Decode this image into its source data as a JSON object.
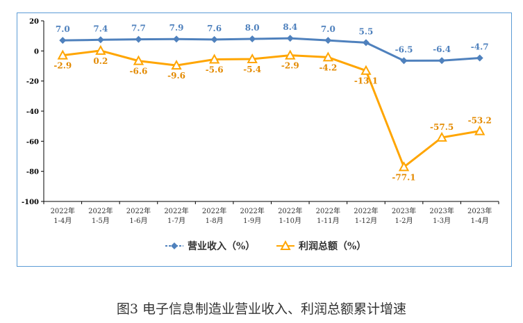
{
  "caption": "图3 电子信息制造业营业收入、利润总额累计增速",
  "chart_data": {
    "type": "line",
    "categories": [
      [
        "2022年",
        "1-4月"
      ],
      [
        "2022年",
        "1-5月"
      ],
      [
        "2022年",
        "1-6月"
      ],
      [
        "2022年",
        "1-7月"
      ],
      [
        "2022年",
        "1-8月"
      ],
      [
        "2022年",
        "1-9月"
      ],
      [
        "2022年",
        "1-10月"
      ],
      [
        "2022年",
        "1-11月"
      ],
      [
        "2022年",
        "1-12月"
      ],
      [
        "2023年",
        "1-2月"
      ],
      [
        "2023年",
        "1-3月"
      ],
      [
        "2023年",
        "1-4月"
      ]
    ],
    "ylim": [
      -100,
      20
    ],
    "yticks": [
      20,
      0,
      -20,
      -40,
      -60,
      -80,
      -100
    ],
    "grid": false,
    "legend_position": "bottom",
    "series": [
      {
        "name": "营业收入（%）",
        "color": "#4f81bd",
        "marker": "diamond",
        "values": [
          7.0,
          7.4,
          7.7,
          7.9,
          7.6,
          8.0,
          8.4,
          7.0,
          5.5,
          -6.5,
          -6.4,
          -4.7
        ],
        "labels": [
          "7.0",
          "7.4",
          "7.7",
          "7.9",
          "7.6",
          "8.0",
          "8.4",
          "7.0",
          "5.5",
          "-6.5",
          "-6.4",
          "-4.7"
        ]
      },
      {
        "name": "利润总额（%）",
        "color": "#ffa500",
        "marker": "triangle",
        "values": [
          -2.9,
          0.2,
          -6.6,
          -9.6,
          -5.6,
          -5.4,
          -2.9,
          -4.2,
          -13.1,
          -77.1,
          -57.5,
          -53.2
        ],
        "labels": [
          "-2.9",
          "0.2",
          "-6.6",
          "-9.6",
          "-5.6",
          "-5.4",
          "-2.9",
          "-4.2",
          "-13.1",
          "-77.1",
          "-57.5",
          "-53.2"
        ]
      }
    ]
  }
}
